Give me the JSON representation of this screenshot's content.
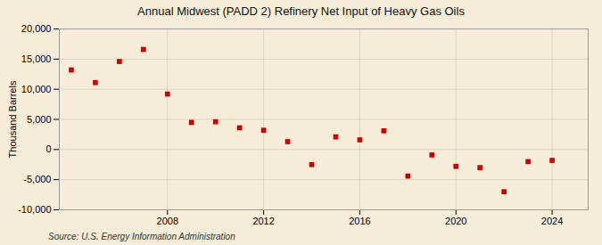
{
  "chart_data": {
    "type": "scatter",
    "title": "Annual Midwest (PADD 2) Refinery Net Input of Heavy Gas Oils",
    "ylabel": "Thousand Barrels",
    "source": "Source: U.S. Energy Information Administration",
    "x": [
      2004,
      2005,
      2006,
      2007,
      2008,
      2009,
      2010,
      2011,
      2012,
      2013,
      2014,
      2015,
      2016,
      2017,
      2018,
      2019,
      2020,
      2021,
      2022,
      2023,
      2024
    ],
    "values": [
      13200,
      11100,
      14600,
      16600,
      9200,
      4500,
      4600,
      3600,
      3200,
      1300,
      -2500,
      2100,
      1600,
      3100,
      -4400,
      -900,
      -2800,
      -3000,
      -7000,
      -2000,
      -1800
    ],
    "color": "#cc0000",
    "marker": "square",
    "xlim": [
      2003.5,
      2025.5
    ],
    "xticks": [
      2008,
      2012,
      2016,
      2020,
      2024
    ],
    "ylim": [
      -10000,
      20000
    ],
    "yticks": [
      {
        "value": -10000,
        "label": "-10,000"
      },
      {
        "value": -5000,
        "label": "-5,000"
      },
      0,
      {
        "value": 5000,
        "label": "5,000"
      },
      {
        "value": 10000,
        "label": "10,000"
      },
      {
        "value": 15000,
        "label": "15,000"
      },
      {
        "value": 20000,
        "label": "20,000"
      }
    ],
    "grid": true
  }
}
